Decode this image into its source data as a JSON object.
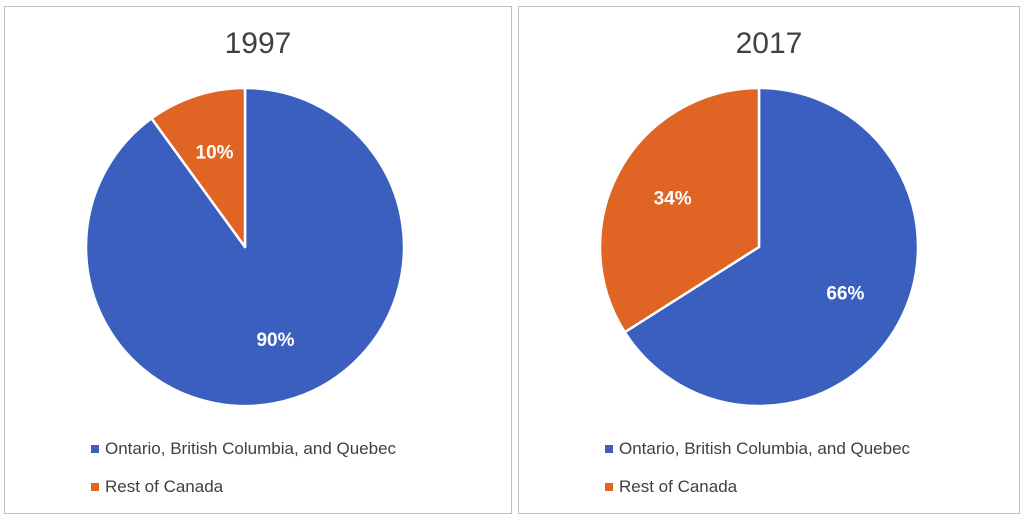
{
  "colors": {
    "primary": "#3A5FBE",
    "secondary": "#E06524"
  },
  "chart_data": [
    {
      "type": "pie",
      "title": "1997",
      "categories": [
        "Ontario, British Columbia, and Quebec",
        "Rest of Canada"
      ],
      "values": [
        90,
        10
      ],
      "data_labels": [
        "90%",
        "10%"
      ],
      "legend_position": "bottom"
    },
    {
      "type": "pie",
      "title": "2017",
      "categories": [
        "Ontario, British Columbia, and Quebec",
        "Rest of Canada"
      ],
      "values": [
        66,
        34
      ],
      "data_labels": [
        "66%",
        "34%"
      ],
      "legend_position": "bottom"
    }
  ]
}
